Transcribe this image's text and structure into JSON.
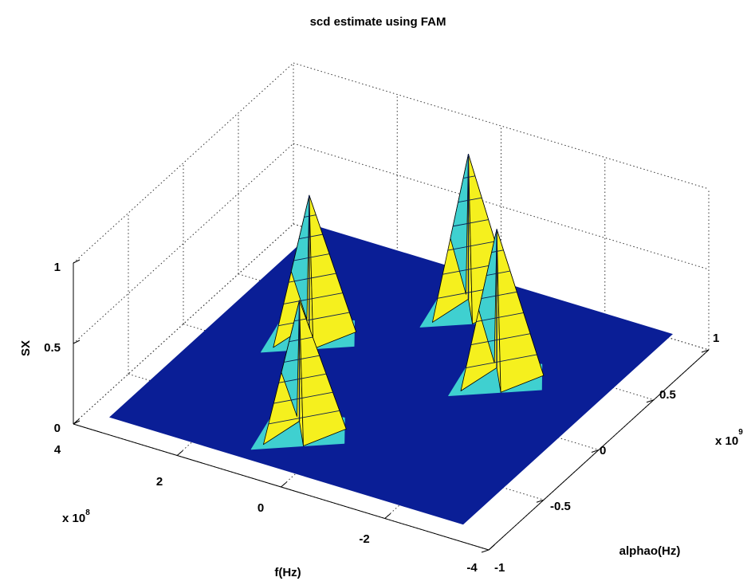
{
  "chart_data": {
    "type": "surface",
    "title": "scd estimate using FAM",
    "x_axis": {
      "label": "f(Hz)",
      "range": [
        -4,
        4
      ],
      "ticks": [
        "4",
        "2",
        "0",
        "-2",
        "-4"
      ],
      "tick_values": [
        4,
        2,
        0,
        -2,
        -4
      ],
      "multiplier": "x 10",
      "exponent": "8"
    },
    "y_axis": {
      "label": "alphao(Hz)",
      "range": [
        -1,
        1
      ],
      "ticks": [
        "-1",
        "-0.5",
        "0",
        "0.5",
        "1"
      ],
      "tick_values": [
        -1,
        -0.5,
        0,
        0.5,
        1
      ],
      "multiplier": "x 10",
      "exponent": "9"
    },
    "z_axis": {
      "label": "SX",
      "range": [
        0,
        1
      ],
      "ticks": [
        "0",
        "0.5",
        "1"
      ],
      "tick_values": [
        0,
        0.5,
        1
      ]
    },
    "grid": true,
    "surface": {
      "base_level": 0,
      "color": "#0a1e96"
    },
    "peaks": [
      {
        "f": 2.0,
        "alpha": 0.2,
        "height": 0.87
      },
      {
        "f": 0.6,
        "alpha": -0.55,
        "height": 0.82
      },
      {
        "f": 0.1,
        "alpha": 0.75,
        "height": 0.97
      },
      {
        "f": -1.4,
        "alpha": 0.3,
        "height": 0.93
      }
    ],
    "colors": {
      "low": "#0a1e96",
      "mid": "#3fd0d0",
      "high": "#f5f01e"
    }
  }
}
